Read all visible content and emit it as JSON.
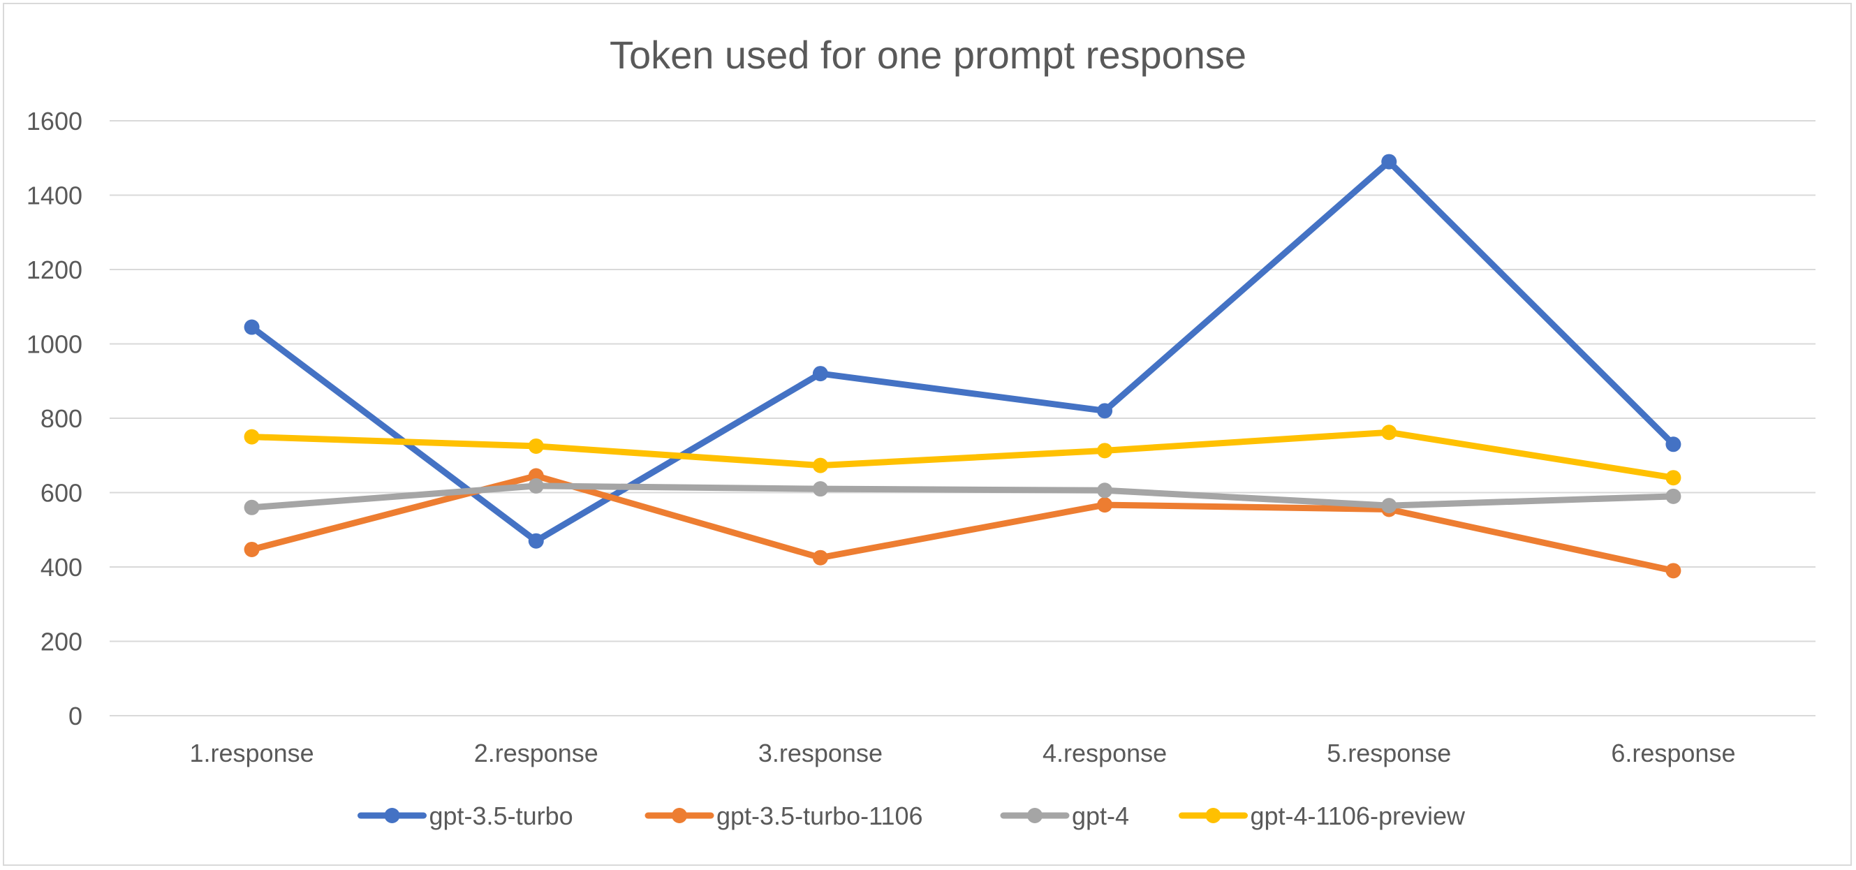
{
  "chart_data": {
    "type": "line",
    "title": "Token used for one prompt response",
    "xlabel": "",
    "ylabel": "",
    "categories": [
      "1.response",
      "2.response",
      "3.response",
      "4.response",
      "5.response",
      "6.response"
    ],
    "ylim": [
      0,
      1600
    ],
    "yticks": [
      0,
      200,
      400,
      600,
      800,
      1000,
      1200,
      1400,
      1600
    ],
    "ytick_labels": [
      "0",
      "200",
      "400",
      "600",
      "800",
      "1000",
      "1200",
      "1400",
      "1600"
    ],
    "grid": true,
    "legend_position": "bottom",
    "series": [
      {
        "name": "gpt-3.5-turbo",
        "color": "#4472c4",
        "values": [
          1045,
          470,
          920,
          820,
          1490,
          730
        ]
      },
      {
        "name": "gpt-3.5-turbo-1106",
        "color": "#ed7d31",
        "values": [
          447,
          645,
          425,
          567,
          555,
          390
        ]
      },
      {
        "name": "gpt-4",
        "color": "#a5a5a5",
        "values": [
          560,
          618,
          610,
          606,
          565,
          590
        ]
      },
      {
        "name": "gpt-4-1106-preview",
        "color": "#ffc000",
        "values": [
          750,
          725,
          673,
          713,
          762,
          640
        ]
      }
    ]
  }
}
